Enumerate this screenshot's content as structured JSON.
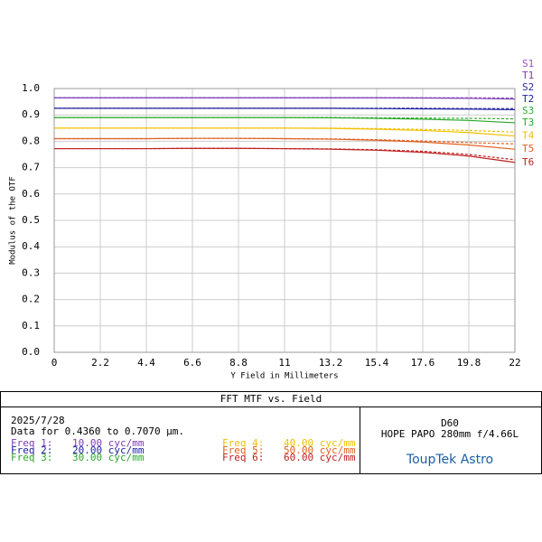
{
  "chart_data": {
    "type": "line",
    "y_label": "Modulus of the OTF",
    "x_label": "Y Field in Millimeters",
    "x": [
      0,
      2.2,
      4.4,
      6.6,
      8.8,
      11,
      13.2,
      15.4,
      17.6,
      19.8,
      22
    ],
    "xlim": [
      0,
      22
    ],
    "xticks": [
      0,
      2.2,
      4.4,
      6.6,
      8.8,
      11,
      13.2,
      15.4,
      17.6,
      19.8,
      22
    ],
    "ylim": [
      0,
      1
    ],
    "yticks": [
      {
        "value": 0,
        "label": "0.0"
      },
      0.1,
      0.2,
      0.3,
      0.4,
      0.5,
      0.6,
      0.7,
      0.8,
      0.9,
      {
        "value": 1,
        "label": "1.0"
      }
    ],
    "grid": true,
    "series": [
      {
        "name": "S3",
        "color": "#30b030",
        "dash": true,
        "values": [
          0.89,
          0.89,
          0.89,
          0.89,
          0.89,
          0.89,
          0.89,
          0.889,
          0.888,
          0.887,
          0.885
        ]
      },
      {
        "name": "S2",
        "color": "#2a2aa0",
        "dash": true,
        "values": [
          0.925,
          0.925,
          0.925,
          0.925,
          0.925,
          0.925,
          0.925,
          0.925,
          0.925,
          0.924,
          0.924
        ]
      },
      {
        "name": "S1",
        "color": "#9a4fd0",
        "dash": true,
        "values": [
          0.965,
          0.965,
          0.965,
          0.965,
          0.965,
          0.965,
          0.965,
          0.965,
          0.965,
          0.965,
          0.964
        ]
      },
      {
        "name": "T1",
        "color": "#7a3bb0",
        "dash": false,
        "values": [
          0.965,
          0.965,
          0.965,
          0.965,
          0.965,
          0.965,
          0.965,
          0.965,
          0.964,
          0.963,
          0.96
        ]
      },
      {
        "name": "T2",
        "color": "#2020a0",
        "dash": false,
        "values": [
          0.925,
          0.925,
          0.925,
          0.925,
          0.925,
          0.925,
          0.925,
          0.924,
          0.923,
          0.922,
          0.92
        ]
      },
      {
        "name": "T3",
        "color": "#28a828",
        "dash": false,
        "values": [
          0.89,
          0.89,
          0.89,
          0.89,
          0.89,
          0.89,
          0.889,
          0.887,
          0.884,
          0.879,
          0.87
        ]
      },
      {
        "name": "T4",
        "color": "#f0c000",
        "dash": false,
        "values": [
          0.85,
          0.85,
          0.85,
          0.85,
          0.85,
          0.85,
          0.849,
          0.846,
          0.841,
          0.833,
          0.82
        ]
      },
      {
        "name": "T5",
        "color": "#e06020",
        "dash": false,
        "values": [
          0.81,
          0.81,
          0.81,
          0.811,
          0.811,
          0.81,
          0.808,
          0.804,
          0.797,
          0.786,
          0.77
        ]
      },
      {
        "name": "T6",
        "color": "#c02020",
        "dash": false,
        "values": [
          0.772,
          0.772,
          0.772,
          0.773,
          0.773,
          0.772,
          0.77,
          0.766,
          0.758,
          0.744,
          0.72
        ]
      },
      {
        "color": "#f0c000",
        "dash": true,
        "values": [
          0.85,
          0.85,
          0.85,
          0.85,
          0.85,
          0.85,
          0.85,
          0.848,
          0.845,
          0.841,
          0.835
        ]
      },
      {
        "color": "#e06020",
        "dash": true,
        "values": [
          0.81,
          0.81,
          0.81,
          0.811,
          0.811,
          0.81,
          0.809,
          0.806,
          0.801,
          0.795,
          0.79
        ]
      },
      {
        "color": "#c02020",
        "dash": true,
        "values": [
          0.772,
          0.772,
          0.772,
          0.773,
          0.773,
          0.772,
          0.771,
          0.768,
          0.762,
          0.75,
          0.73
        ]
      }
    ]
  },
  "info_box": {
    "title": "FFT MTF vs. Field",
    "date": "2025/7/28",
    "data_range": "Data for 0.4360 to 0.7070 µm.",
    "frequencies": [
      {
        "label": "Freq 1:",
        "value": "10.00 cyc/mm",
        "color": "#7a3bb0"
      },
      {
        "label": "Freq 2:",
        "value": "20.00 cyc/mm",
        "color": "#2020a0"
      },
      {
        "label": "Freq 3:",
        "value": "30.00 cyc/mm",
        "color": "#28a828"
      },
      {
        "label": "Freq 4:",
        "value": "40.00 cyc/mm",
        "color": "#f0c000"
      },
      {
        "label": "Freq 5:",
        "value": "50.00 cyc/mm",
        "color": "#e06020"
      },
      {
        "label": "Freq 6:",
        "value": "60.00 cyc/mm",
        "color": "#c02020"
      }
    ],
    "lens_code": "D60",
    "lens_name": "HOPE PAPO 280mm f/4.66L",
    "brand": "ToupTek Astro"
  }
}
